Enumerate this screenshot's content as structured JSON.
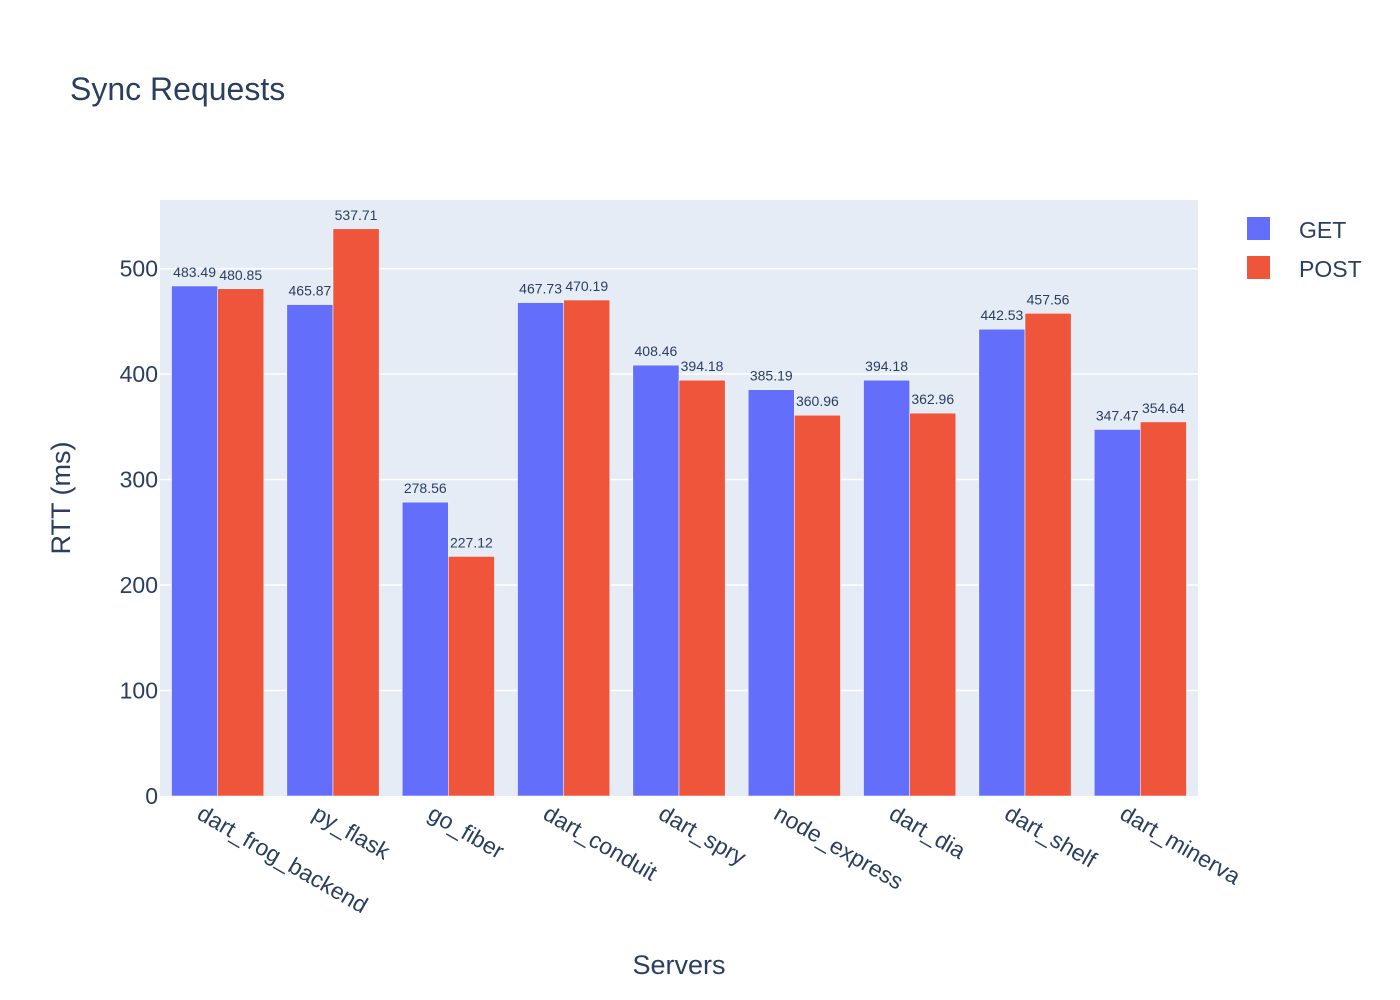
{
  "chart_data": {
    "type": "bar",
    "title": "Sync Requests",
    "xlabel": "Servers",
    "ylabel": "RTT (ms)",
    "ylim": [
      0,
      565
    ],
    "yticks": [
      0,
      100,
      200,
      300,
      400,
      500
    ],
    "grid": true,
    "legend_position": "top-right",
    "categories": [
      "dart_frog_backend",
      "py_flask",
      "go_fiber",
      "dart_conduit",
      "dart_spry",
      "node_express",
      "dart_dia",
      "dart_shelf",
      "dart_minerva"
    ],
    "series": [
      {
        "name": "GET",
        "color": "#636efa",
        "values": [
          483.49,
          465.87,
          278.56,
          467.73,
          408.46,
          385.19,
          394.18,
          442.53,
          347.47
        ],
        "labels": [
          "483.49",
          "465.87",
          "278.56",
          "467.73",
          "408.46",
          "385.19",
          "394.18",
          "442.53",
          "347.47"
        ]
      },
      {
        "name": "POST",
        "color": "#ef553b",
        "values": [
          480.85,
          537.71,
          227.12,
          470.19,
          394.18,
          360.96,
          362.96,
          457.56,
          354.64
        ],
        "labels": [
          "480.85",
          "537.71",
          "227.12",
          "470.19",
          "394.18",
          "360.96",
          "362.96",
          "457.56",
          "354.64"
        ]
      }
    ],
    "plot_background": "#e5ecf6",
    "gridline_color": "#ffffff"
  }
}
